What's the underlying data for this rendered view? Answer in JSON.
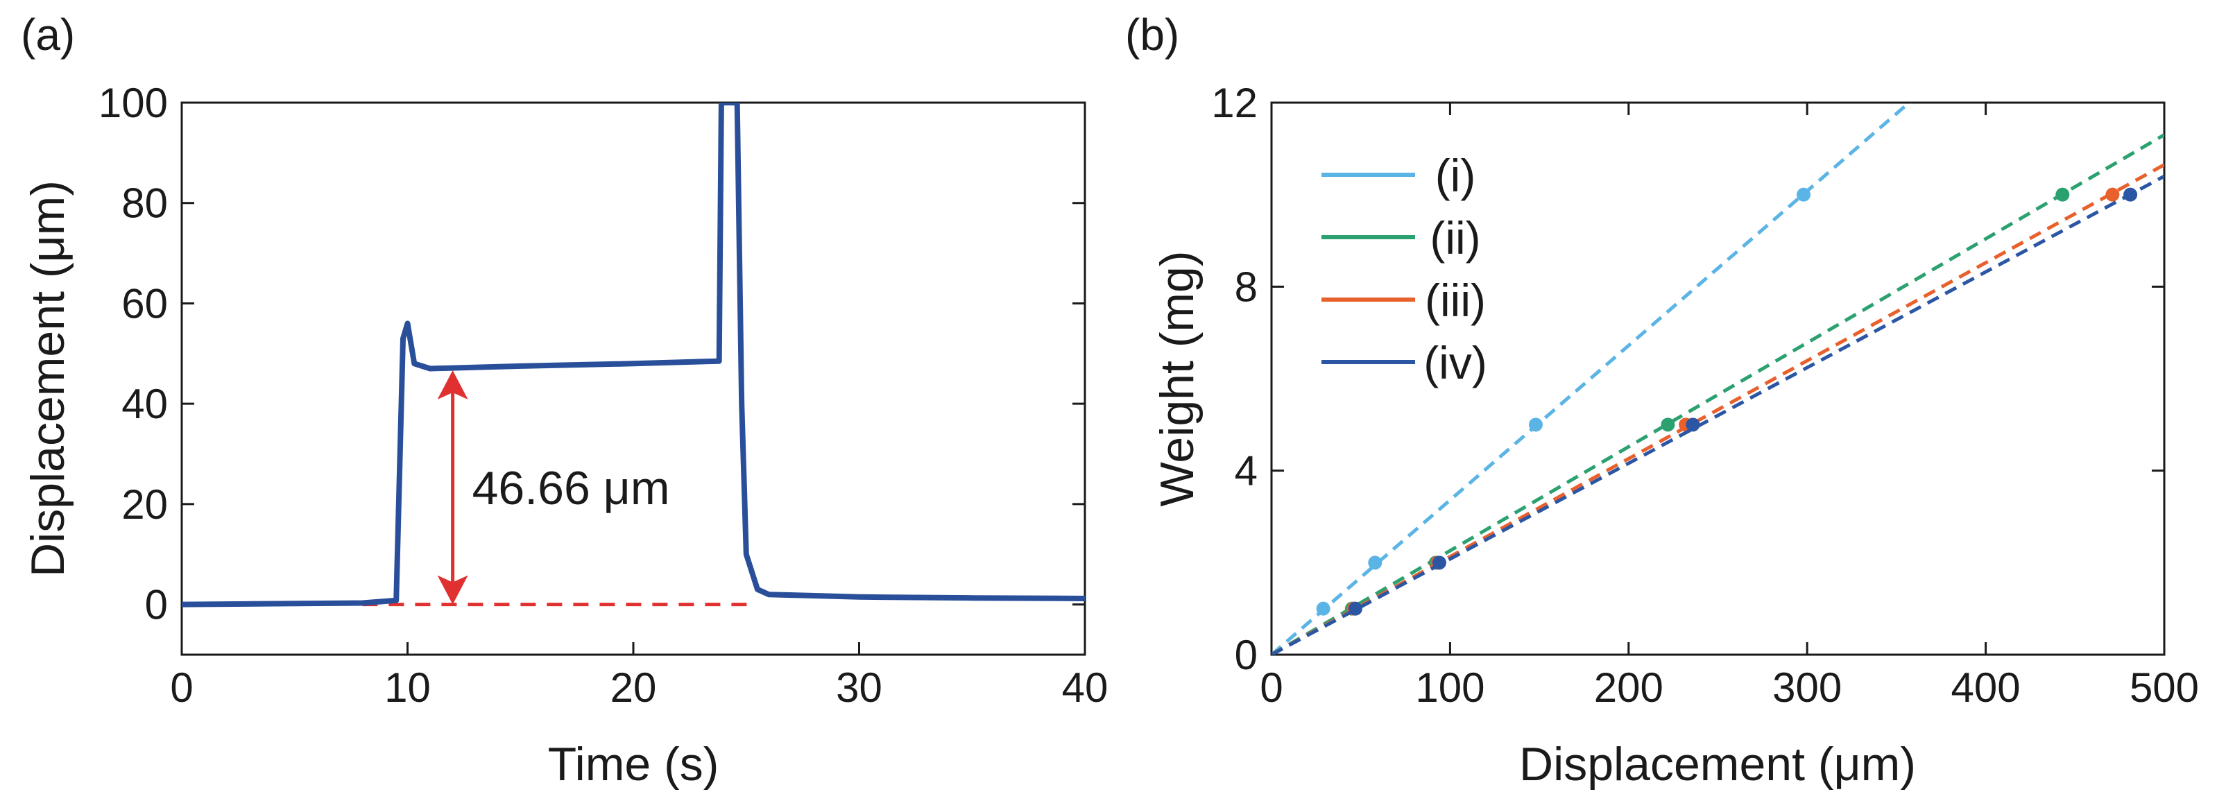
{
  "panels": [
    {
      "label": "(a)",
      "chart_data": {
        "type": "line",
        "xlabel": "Time (s)",
        "ylabel": "Displacement (μm)",
        "xlim": [
          0,
          40
        ],
        "ylim": [
          -10,
          100
        ],
        "xticks": [
          0,
          10,
          20,
          30,
          40
        ],
        "yticks": [
          0,
          20,
          40,
          60,
          80,
          100
        ],
        "grid": false,
        "series": [
          {
            "name": "displacement",
            "color": "#2a4f9a",
            "x": [
              0,
              8,
              9.5,
              9.8,
              10.0,
              10.3,
              11,
              15,
              20,
              23.8,
              23.9,
              24.1,
              24.6,
              24.8,
              25.0,
              25.5,
              26,
              30,
              35,
              40
            ],
            "y": [
              0,
              0.3,
              0.8,
              53,
              56,
              48,
              47,
              47.5,
              48,
              48.5,
              100,
              100,
              100,
              40,
              10,
              3,
              2,
              1.5,
              1.3,
              1.2
            ]
          }
        ],
        "baseline": {
          "color": "#e03030",
          "x": [
            8,
            25.5
          ],
          "y": 0
        },
        "annotation": {
          "text": "46.66 μm",
          "x": 12,
          "y_from": 0,
          "y_to": 46.66,
          "color": "#e03030"
        }
      }
    },
    {
      "label": "(b)",
      "chart_data": {
        "type": "scatter",
        "xlabel": "Displacement (μm)",
        "ylabel": "Weight (mg)",
        "xlim": [
          0,
          500
        ],
        "ylim": [
          0,
          12
        ],
        "xticks": [
          0,
          100,
          200,
          300,
          400,
          500
        ],
        "yticks": [
          0,
          4,
          8,
          12
        ],
        "grid": false,
        "legend_position": "top-left",
        "series": [
          {
            "name": "(i)",
            "color": "#5ab4e5",
            "x": [
              29,
              58,
              148,
              298
            ],
            "y": [
              1,
              2,
              5,
              10
            ],
            "fit_slope": 0.0336
          },
          {
            "name": "(ii)",
            "color": "#2ba170",
            "x": [
              45,
              92,
              222,
              443
            ],
            "y": [
              1,
              2,
              5,
              10
            ],
            "fit_slope": 0.0226
          },
          {
            "name": "(iii)",
            "color": "#e8602c",
            "x": [
              46,
              93,
              232,
              471
            ],
            "y": [
              1,
              2,
              5,
              10
            ],
            "fit_slope": 0.0213
          },
          {
            "name": "(iv)",
            "color": "#2b56a4",
            "x": [
              47,
              94,
              236,
              481
            ],
            "y": [
              1,
              2,
              5,
              10
            ],
            "fit_slope": 0.0208
          }
        ]
      }
    }
  ]
}
